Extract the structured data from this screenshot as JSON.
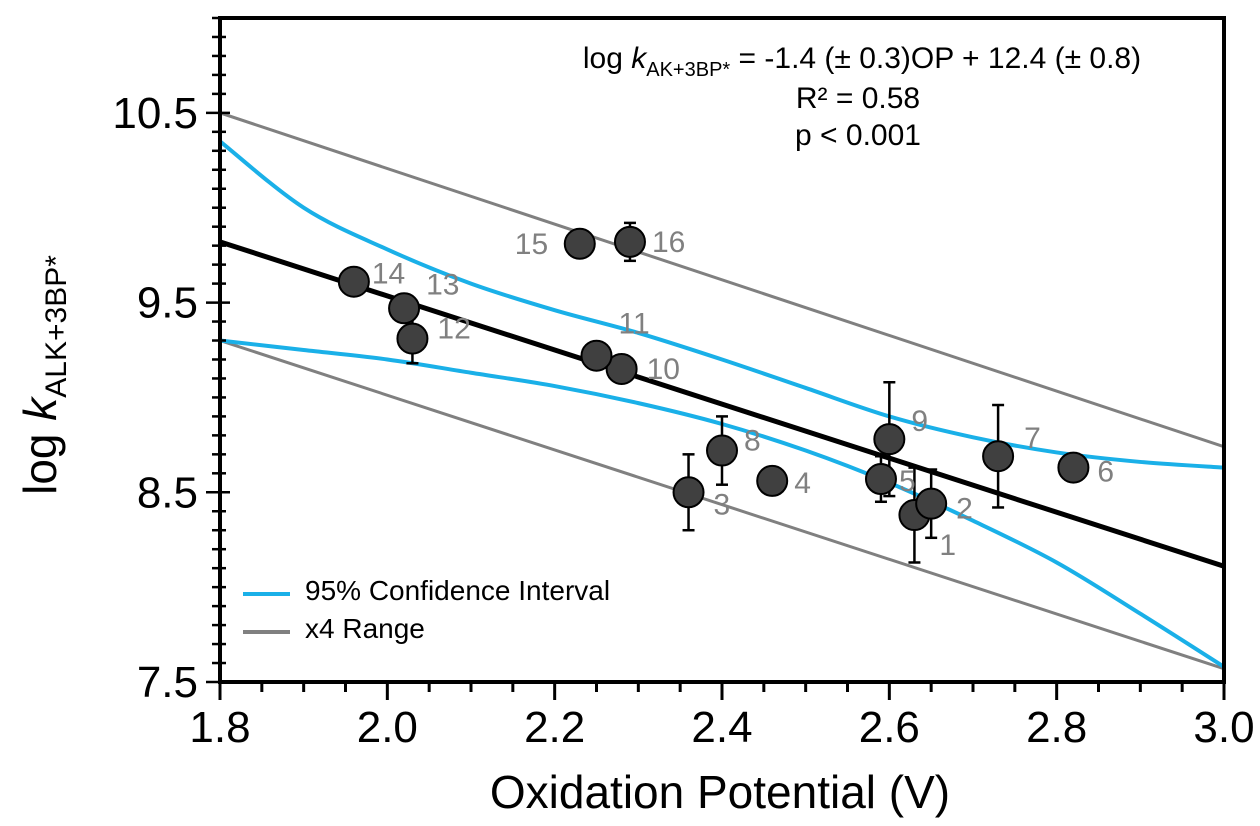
{
  "chart_data": {
    "type": "scatter",
    "xlabel": "Oxidation Potential (V)",
    "ylabel": {
      "main": "log ",
      "italic": "k",
      "sub": "ALK+3BP*"
    },
    "xlim": [
      1.8,
      3.0
    ],
    "ylim": [
      7.5,
      11.0
    ],
    "x_ticks": [
      "1.8",
      "2.0",
      "2.2",
      "2.4",
      "2.6",
      "2.8",
      "3.0"
    ],
    "y_ticks": [
      "7.5",
      "8.5",
      "9.5",
      "10.5"
    ],
    "annotation": {
      "line1_prefix": "log ",
      "line1_italic": "k",
      "line1_sub": "AK+3BP*",
      "line1_suffix": " = -1.4 (± 0.3)OP + 12.4 (± 0.8)",
      "line2": "R² = 0.58",
      "line3": "p < 0.001"
    },
    "points": [
      {
        "label": "1",
        "x": 2.63,
        "y": 8.38,
        "err": 0.25
      },
      {
        "label": "2",
        "x": 2.65,
        "y": 8.44,
        "err": 0.18
      },
      {
        "label": "3",
        "x": 2.36,
        "y": 8.5,
        "err": 0.2
      },
      {
        "label": "4",
        "x": 2.46,
        "y": 8.56,
        "err": 0.0
      },
      {
        "label": "5",
        "x": 2.59,
        "y": 8.57,
        "err": 0.12
      },
      {
        "label": "6",
        "x": 2.82,
        "y": 8.63,
        "err": 0.07
      },
      {
        "label": "7",
        "x": 2.73,
        "y": 8.69,
        "err": 0.27
      },
      {
        "label": "8",
        "x": 2.4,
        "y": 8.72,
        "err": 0.18
      },
      {
        "label": "9",
        "x": 2.6,
        "y": 8.78,
        "err": 0.3
      },
      {
        "label": "10",
        "x": 2.28,
        "y": 9.15,
        "err": 0.0
      },
      {
        "label": "11",
        "x": 2.25,
        "y": 9.22,
        "err": 0.0
      },
      {
        "label": "12",
        "x": 2.03,
        "y": 9.31,
        "err": 0.13
      },
      {
        "label": "13",
        "x": 2.02,
        "y": 9.47,
        "err": 0.0
      },
      {
        "label": "14",
        "x": 1.96,
        "y": 9.61,
        "err": 0.0
      },
      {
        "label": "15",
        "x": 2.23,
        "y": 9.81,
        "err": 0.07
      },
      {
        "label": "16",
        "x": 2.29,
        "y": 9.82,
        "err": 0.1
      }
    ],
    "fit": {
      "slope": -1.4,
      "intercept": 12.4,
      "x": [
        1.8,
        3.0
      ],
      "y": [
        9.82,
        8.11
      ]
    },
    "ci_upper": {
      "x": [
        1.8,
        1.9,
        2.0,
        2.1,
        2.2,
        2.3,
        2.4,
        2.5,
        2.6,
        2.7,
        2.8,
        2.9,
        3.0
      ],
      "y": [
        10.35,
        10.0,
        9.78,
        9.6,
        9.46,
        9.34,
        9.2,
        9.05,
        8.9,
        8.79,
        8.71,
        8.66,
        8.63
      ]
    },
    "ci_lower": {
      "x": [
        1.8,
        1.9,
        2.0,
        2.1,
        2.2,
        2.3,
        2.4,
        2.5,
        2.6,
        2.7,
        2.8,
        2.9,
        3.0
      ],
      "y": [
        9.3,
        9.25,
        9.2,
        9.13,
        9.06,
        8.97,
        8.86,
        8.72,
        8.55,
        8.35,
        8.13,
        7.86,
        7.58
      ]
    },
    "range_upper": {
      "x": [
        1.8,
        3.0
      ],
      "y": [
        10.5,
        8.74
      ]
    },
    "range_lower": {
      "x": [
        1.8,
        3.0
      ],
      "y": [
        9.3,
        7.57
      ]
    },
    "legend": {
      "position": "bottom-left",
      "items": [
        {
          "label": "95% Confidence Interval",
          "color": "#1ab0e8"
        },
        {
          "label": "x4 Range",
          "color": "#808080"
        }
      ]
    },
    "colors": {
      "point": "#404040",
      "fit": "#000000",
      "ci": "#1ab0e8",
      "range": "#808080",
      "point_label": "#808080"
    }
  }
}
